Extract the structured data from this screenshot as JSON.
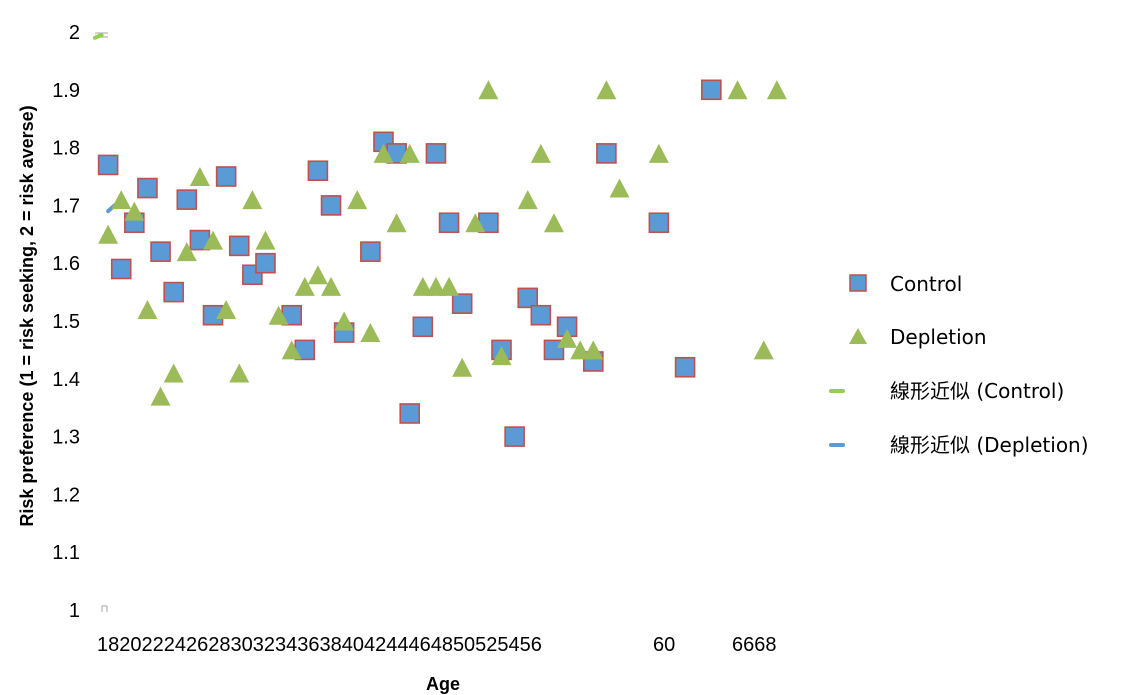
{
  "chart_data": {
    "type": "scatter",
    "title": "",
    "xlabel": "Age",
    "ylabel": "Risk preference (1 = risk seeking, 2 = risk averse)",
    "xlim": [
      17,
      70
    ],
    "ylim": [
      1,
      2
    ],
    "y_ticks": [
      "1",
      "1.1",
      "1.2",
      "1.3",
      "1.4",
      "1.5",
      "1.6",
      "1.7",
      "1.8",
      "1.9",
      "2"
    ],
    "x_tick_labels": [
      "1820222426283032343638404244464850525456",
      "60",
      "6668"
    ],
    "grid": false,
    "legend_position": "right",
    "series": [
      {
        "name": "Control",
        "marker": "square",
        "fill": "#5b9bd5",
        "stroke": "#c0504d",
        "points": [
          [
            18,
            1.77
          ],
          [
            19,
            1.59
          ],
          [
            20,
            1.67
          ],
          [
            21,
            1.73
          ],
          [
            22,
            1.62
          ],
          [
            23,
            1.55
          ],
          [
            24,
            1.71
          ],
          [
            25,
            1.64
          ],
          [
            26,
            1.51
          ],
          [
            27,
            1.75
          ],
          [
            28,
            1.63
          ],
          [
            29,
            1.58
          ],
          [
            30,
            1.6
          ],
          [
            32,
            1.51
          ],
          [
            33,
            1.45
          ],
          [
            34,
            1.76
          ],
          [
            35,
            1.7
          ],
          [
            36,
            1.48
          ],
          [
            38,
            1.62
          ],
          [
            39,
            1.81
          ],
          [
            40,
            1.79
          ],
          [
            41,
            1.34
          ],
          [
            42,
            1.49
          ],
          [
            43,
            1.79
          ],
          [
            44,
            1.67
          ],
          [
            45,
            1.53
          ],
          [
            47,
            1.67
          ],
          [
            48,
            1.45
          ],
          [
            49,
            1.3
          ],
          [
            50,
            1.54
          ],
          [
            51,
            1.51
          ],
          [
            52,
            1.45
          ],
          [
            53,
            1.49
          ],
          [
            55,
            1.43
          ],
          [
            56,
            1.79
          ],
          [
            60,
            1.67
          ],
          [
            62,
            1.42
          ],
          [
            64,
            1.9
          ]
        ]
      },
      {
        "name": "Depletion",
        "marker": "triangle",
        "fill": "#9bbb59",
        "stroke": "#9bbb59",
        "points": [
          [
            18,
            1.65
          ],
          [
            19,
            1.71
          ],
          [
            20,
            1.69
          ],
          [
            21,
            1.52
          ],
          [
            22,
            1.37
          ],
          [
            23,
            1.41
          ],
          [
            24,
            1.62
          ],
          [
            25,
            1.75
          ],
          [
            26,
            1.64
          ],
          [
            27,
            1.52
          ],
          [
            28,
            1.41
          ],
          [
            29,
            1.71
          ],
          [
            30,
            1.64
          ],
          [
            31,
            1.51
          ],
          [
            32,
            1.45
          ],
          [
            33,
            1.56
          ],
          [
            34,
            1.58
          ],
          [
            35,
            1.56
          ],
          [
            36,
            1.5
          ],
          [
            37,
            1.71
          ],
          [
            38,
            1.48
          ],
          [
            39,
            1.79
          ],
          [
            40,
            1.67
          ],
          [
            41,
            1.79
          ],
          [
            42,
            1.56
          ],
          [
            43,
            1.56
          ],
          [
            44,
            1.56
          ],
          [
            45,
            1.42
          ],
          [
            46,
            1.67
          ],
          [
            47,
            1.9
          ],
          [
            48,
            1.44
          ],
          [
            50,
            1.71
          ],
          [
            51,
            1.79
          ],
          [
            52,
            1.67
          ],
          [
            53,
            1.47
          ],
          [
            54,
            1.45
          ],
          [
            55,
            1.45
          ],
          [
            56,
            1.9
          ],
          [
            57,
            1.73
          ],
          [
            60,
            1.79
          ],
          [
            66,
            1.9
          ],
          [
            68,
            1.45
          ],
          [
            69,
            1.9
          ]
        ]
      }
    ],
    "trendlines": [
      {
        "name": "線形近似 (Control)",
        "color": "#92d050",
        "x": [
          17,
          17.5
        ],
        "y": [
          1.99,
          1.995
        ]
      },
      {
        "name": "線形近似 (Depletion)",
        "color": "#5b9bd5",
        "x": [
          18,
          18.5
        ],
        "y": [
          1.69,
          1.7
        ]
      }
    ]
  }
}
